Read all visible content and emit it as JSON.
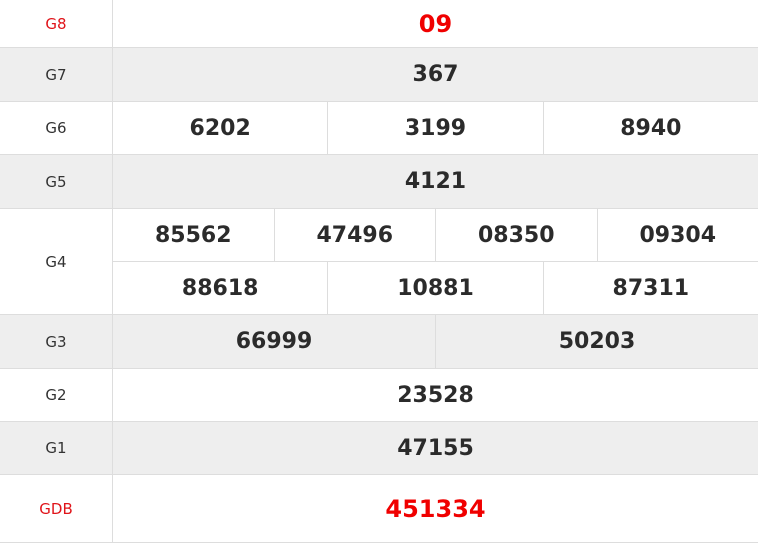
{
  "prizes": [
    {
      "label": "G8",
      "lines": [
        [
          "09"
        ]
      ],
      "highlight": true
    },
    {
      "label": "G7",
      "lines": [
        [
          "367"
        ]
      ]
    },
    {
      "label": "G6",
      "lines": [
        [
          "6202",
          "3199",
          "8940"
        ]
      ]
    },
    {
      "label": "G5",
      "lines": [
        [
          "4121"
        ]
      ]
    },
    {
      "label": "G4",
      "lines": [
        [
          "85562",
          "47496",
          "08350",
          "09304"
        ],
        [
          "88618",
          "10881",
          "87311"
        ]
      ]
    },
    {
      "label": "G3",
      "lines": [
        [
          "66999",
          "50203"
        ]
      ]
    },
    {
      "label": "G2",
      "lines": [
        [
          "23528"
        ]
      ]
    },
    {
      "label": "G1",
      "lines": [
        [
          "47155"
        ]
      ]
    },
    {
      "label": "GDB",
      "lines": [
        [
          "451334"
        ]
      ],
      "highlight": true
    }
  ],
  "colors": {
    "highlight": "#f00000",
    "label_highlight": "#e0141a",
    "alt_row": "#eeeeee",
    "border": "#dddddd"
  }
}
